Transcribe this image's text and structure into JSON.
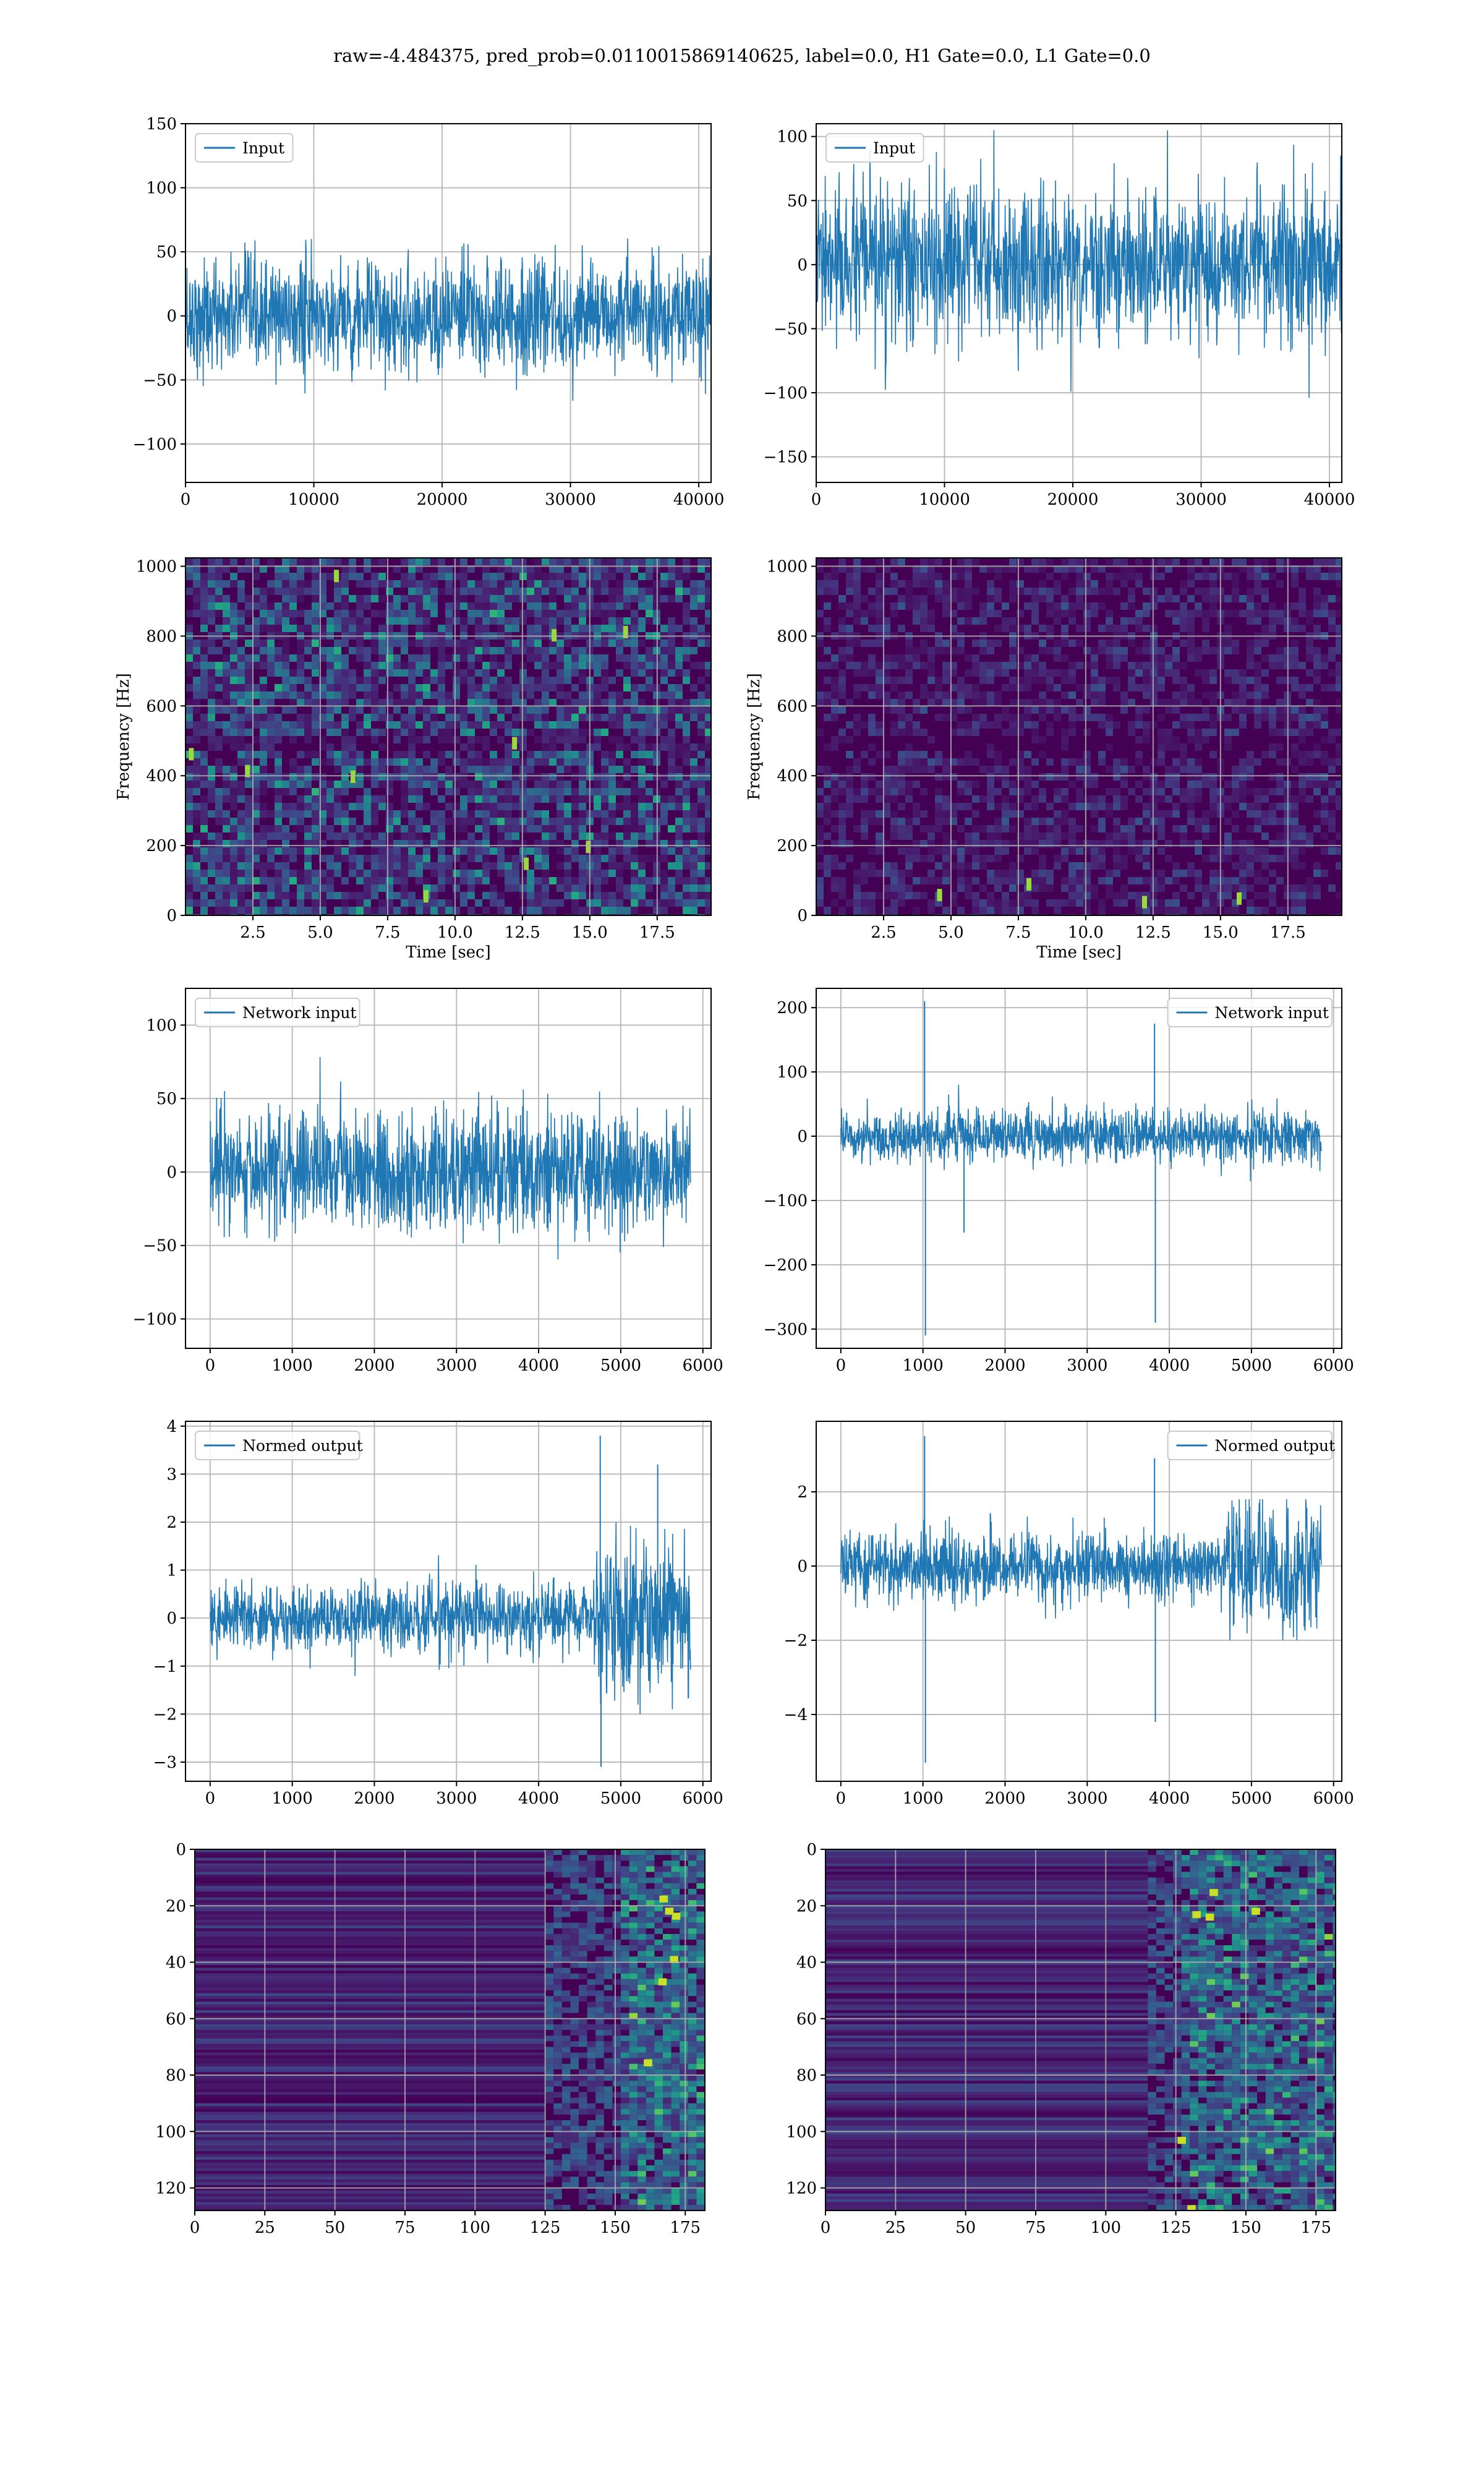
{
  "suptitle": "raw=-4.484375, pred_prob=0.0110015869140625, label=0.0, H1 Gate=0.0, L1 Gate=0.0",
  "colors": {
    "line": "#1f77b4",
    "viridis_low": "#440154",
    "viridis_mid": "#21918c",
    "viridis_high": "#fde725",
    "grid": "#b0b0b0"
  },
  "chart_data": [
    {
      "id": "input_h1",
      "type": "line",
      "legend": "Input",
      "legend_loc": "upper left",
      "xlim": [
        0,
        40960
      ],
      "ylim": [
        -130,
        150
      ],
      "xticks": [
        0,
        10000,
        20000,
        30000,
        40000
      ],
      "yticks": [
        -100,
        -50,
        0,
        50,
        100,
        150
      ],
      "x_range": [
        0,
        40960
      ],
      "sigma": 22,
      "amp_max": 120,
      "amp_min": -120,
      "spikes": [],
      "envelope": []
    },
    {
      "id": "input_l1",
      "type": "line",
      "legend": "Input",
      "legend_loc": "upper left",
      "xlim": [
        0,
        40960
      ],
      "ylim": [
        -170,
        110
      ],
      "xticks": [
        0,
        10000,
        20000,
        30000,
        40000
      ],
      "yticks": [
        -150,
        -100,
        -50,
        0,
        50,
        100
      ],
      "x_range": [
        0,
        40960
      ],
      "sigma": 30,
      "amp_max": 105,
      "amp_min": -160,
      "spikes": [],
      "envelope": []
    },
    {
      "id": "spec_h1",
      "type": "heatmap",
      "colormap": "viridis",
      "bright_points": 10,
      "xlim": [
        0,
        19.5
      ],
      "ylim": [
        0,
        1024
      ],
      "xticks": [
        2.5,
        5.0,
        7.5,
        10.0,
        12.5,
        15.0,
        17.5
      ],
      "yticks": [
        0,
        200,
        400,
        600,
        800,
        1000
      ],
      "xtick_labels": [
        "2.5",
        "5.0",
        "7.5",
        "10.0",
        "12.5",
        "15.0",
        "17.5"
      ],
      "xlabel": "Time [sec]",
      "ylabel": "Frequency [Hz]",
      "intensity": 0.42
    },
    {
      "id": "spec_l1",
      "type": "heatmap",
      "colormap": "viridis",
      "bright_points": 4,
      "xlim": [
        0,
        19.5
      ],
      "ylim": [
        0,
        1024
      ],
      "xticks": [
        2.5,
        5.0,
        7.5,
        10.0,
        12.5,
        15.0,
        17.5
      ],
      "yticks": [
        0,
        200,
        400,
        600,
        800,
        1000
      ],
      "xtick_labels": [
        "2.5",
        "5.0",
        "7.5",
        "10.0",
        "12.5",
        "15.0",
        "17.5"
      ],
      "xlabel": "Time [sec]",
      "ylabel": "Frequency [Hz]",
      "intensity": 0.18
    },
    {
      "id": "net_h1",
      "type": "line",
      "legend": "Network input",
      "legend_loc": "upper left",
      "xlim": [
        -300,
        6100
      ],
      "ylim": [
        -120,
        125
      ],
      "xticks": [
        0,
        1000,
        2000,
        3000,
        4000,
        5000,
        6000
      ],
      "yticks": [
        -100,
        -50,
        0,
        50,
        100
      ],
      "x_range": [
        0,
        5850
      ],
      "sigma": 20,
      "amp_max": 105,
      "amp_min": -110,
      "spikes": [],
      "envelope": []
    },
    {
      "id": "net_l1",
      "type": "line",
      "legend": "Network input",
      "legend_loc": "upper right",
      "xlim": [
        -300,
        6100
      ],
      "ylim": [
        -330,
        230
      ],
      "xticks": [
        0,
        1000,
        2000,
        3000,
        4000,
        5000,
        6000
      ],
      "yticks": [
        -300,
        -200,
        -100,
        0,
        100,
        200
      ],
      "x_range": [
        0,
        5850
      ],
      "sigma": 20,
      "amp_max": 90,
      "amp_min": -110,
      "spikes": [
        [
          1020,
          210
        ],
        [
          1030,
          -310
        ],
        [
          3820,
          175
        ],
        [
          3830,
          -290
        ],
        [
          1500,
          -150
        ]
      ],
      "envelope": []
    },
    {
      "id": "norm_h1",
      "type": "line",
      "legend": "Normed output",
      "legend_loc": "upper left",
      "xlim": [
        -300,
        6100
      ],
      "ylim": [
        -3.4,
        4.1
      ],
      "xticks": [
        0,
        1000,
        2000,
        3000,
        4000,
        5000,
        6000
      ],
      "yticks": [
        -3,
        -2,
        -1,
        0,
        1,
        2,
        3,
        4
      ],
      "x_range": [
        0,
        5850
      ],
      "sigma": 0.35,
      "amp_max": 2.0,
      "amp_min": -2.0,
      "spikes": [
        [
          4750,
          3.8
        ],
        [
          4760,
          -3.1
        ],
        [
          5450,
          3.2
        ]
      ],
      "envelope": [
        [
          4700,
          5850,
          2.4
        ]
      ]
    },
    {
      "id": "norm_l1",
      "type": "line",
      "legend": "Normed output",
      "legend_loc": "upper right",
      "xlim": [
        -300,
        6100
      ],
      "ylim": [
        -5.8,
        3.9
      ],
      "xticks": [
        0,
        1000,
        2000,
        3000,
        4000,
        5000,
        6000
      ],
      "yticks": [
        -4,
        -2,
        0,
        2
      ],
      "x_range": [
        0,
        5850
      ],
      "sigma": 0.45,
      "amp_max": 1.8,
      "amp_min": -2.0,
      "spikes": [
        [
          1020,
          3.5
        ],
        [
          1030,
          -5.3
        ],
        [
          3820,
          2.9
        ],
        [
          3830,
          -4.2
        ]
      ],
      "envelope": [
        [
          4700,
          5850,
          2.1
        ]
      ]
    },
    {
      "id": "feat_h1",
      "type": "heatmap",
      "colormap": "viridis",
      "mode": "features",
      "xlim": [
        0,
        182
      ],
      "ylim": [
        128,
        0
      ],
      "xticks": [
        0,
        25,
        50,
        75,
        100,
        125,
        150,
        175
      ],
      "yticks": [
        0,
        20,
        40,
        60,
        80,
        100,
        120
      ],
      "onset": 125,
      "peak_start": 150
    },
    {
      "id": "feat_l1",
      "type": "heatmap",
      "colormap": "viridis",
      "mode": "features",
      "xlim": [
        0,
        182
      ],
      "ylim": [
        128,
        0
      ],
      "xticks": [
        0,
        25,
        50,
        75,
        100,
        125,
        150,
        175
      ],
      "yticks": [
        0,
        20,
        40,
        60,
        80,
        100,
        120
      ],
      "onset": 115,
      "peak_start": 125
    }
  ]
}
